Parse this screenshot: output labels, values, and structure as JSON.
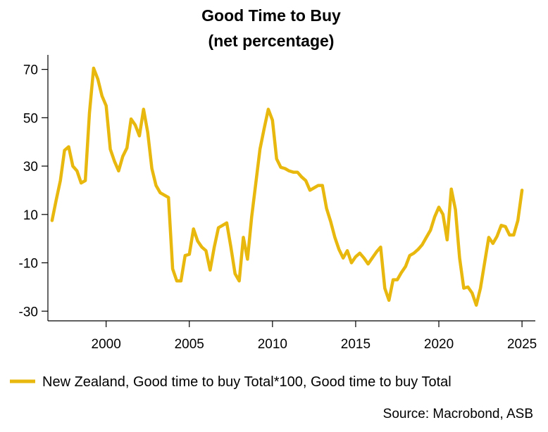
{
  "chart_data": {
    "type": "line",
    "title": "Good Time to Buy",
    "subtitle": "(net percentage)",
    "xlabel": "",
    "ylabel": "",
    "xlim": [
      1996.5,
      2025.8
    ],
    "ylim": [
      -34,
      76
    ],
    "y_ticks": [
      70,
      50,
      30,
      10,
      -10,
      -30
    ],
    "y_tick_labels": [
      "70",
      "50",
      "30",
      "10",
      "-10",
      "-30"
    ],
    "x_ticks": [
      2000,
      2005,
      2010,
      2015,
      2020,
      2025
    ],
    "x_tick_labels": [
      "2000",
      "2005",
      "2010",
      "2015",
      "2020",
      "2025"
    ],
    "grid": false,
    "legend_position": "bottom-left",
    "series": [
      {
        "name": "New Zealand, Good time to buy Total*100, Good time to buy Total",
        "color": "#E8B80F",
        "x": [
          1996.75,
          1997.0,
          1997.25,
          1997.5,
          1997.75,
          1998.0,
          1998.25,
          1998.5,
          1998.75,
          1999.0,
          1999.25,
          1999.5,
          1999.75,
          2000.0,
          2000.25,
          2000.5,
          2000.75,
          2001.0,
          2001.25,
          2001.5,
          2001.75,
          2002.0,
          2002.25,
          2002.5,
          2002.75,
          2003.0,
          2003.25,
          2003.5,
          2003.75,
          2004.0,
          2004.25,
          2004.5,
          2004.75,
          2005.0,
          2005.25,
          2005.5,
          2005.75,
          2006.0,
          2006.25,
          2006.5,
          2006.75,
          2007.0,
          2007.25,
          2007.5,
          2007.75,
          2008.0,
          2008.25,
          2008.5,
          2008.75,
          2009.0,
          2009.25,
          2009.5,
          2009.75,
          2010.0,
          2010.25,
          2010.5,
          2010.75,
          2011.0,
          2011.25,
          2011.5,
          2011.75,
          2012.0,
          2012.25,
          2012.5,
          2012.75,
          2013.0,
          2013.25,
          2013.5,
          2013.75,
          2014.0,
          2014.25,
          2014.5,
          2014.75,
          2015.0,
          2015.25,
          2015.5,
          2015.75,
          2016.0,
          2016.25,
          2016.5,
          2016.75,
          2017.0,
          2017.25,
          2017.5,
          2017.75,
          2018.0,
          2018.25,
          2018.5,
          2018.75,
          2019.0,
          2019.25,
          2019.5,
          2019.75,
          2020.0,
          2020.25,
          2020.5,
          2020.75,
          2021.0,
          2021.25,
          2021.5,
          2021.75,
          2022.0,
          2022.25,
          2022.5,
          2022.75,
          2023.0,
          2023.25,
          2023.5,
          2023.75,
          2024.0,
          2024.25,
          2024.5,
          2024.75,
          2025.0
        ],
        "values": [
          7.5,
          16,
          24,
          36.5,
          38,
          30,
          28,
          23,
          24,
          52,
          70.5,
          66,
          59,
          55,
          37,
          32,
          28,
          34,
          37.5,
          49.5,
          47,
          42.5,
          53.5,
          44,
          29,
          22,
          19,
          18,
          17,
          -12.5,
          -17.5,
          -17.5,
          -7,
          -6.5,
          4,
          -1,
          -3.5,
          -5,
          -13,
          -3.5,
          4.5,
          5.5,
          6.5,
          -3.5,
          -14.5,
          -17.5,
          0.5,
          -8.5,
          9,
          23,
          37,
          45.5,
          53.5,
          49,
          33,
          29.5,
          29,
          28,
          27.5,
          27.5,
          25.5,
          24,
          20,
          21,
          22,
          22,
          12.5,
          7,
          0.5,
          -4.5,
          -8,
          -5,
          -10,
          -7.5,
          -6,
          -8,
          -10.5,
          -8,
          -5.5,
          -3.5,
          -20.5,
          -25.5,
          -17,
          -17,
          -14,
          -11.5,
          -7,
          -6,
          -4.5,
          -2.5,
          0.5,
          3.5,
          9,
          13,
          10,
          -0.5,
          20.5,
          12,
          -8,
          -20.5,
          -20,
          -22.5,
          -27.5,
          -20.5,
          -10,
          0.5,
          -2,
          1,
          5.5,
          5,
          1.5,
          1.5,
          7.5,
          20
        ]
      }
    ],
    "source": "Source: Macrobond, ASB"
  }
}
